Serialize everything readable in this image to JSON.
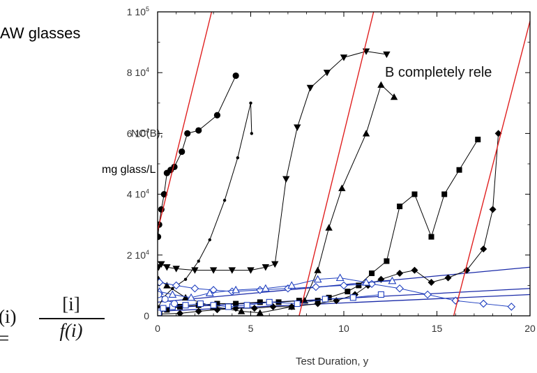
{
  "labels": {
    "heading_fragment": "AW glasses",
    "y_label_top": "NC(B),",
    "y_label_bottom": "mg glass/L",
    "x_label": "Test Duration, y",
    "annotation": "B completely rele",
    "formula": {
      "lhs": "(i) =",
      "numerator": "[i]",
      "denominator": "f(i)"
    }
  },
  "colors": {
    "reference_lines": "#e02020",
    "fit_lines": "#1a2aa8",
    "data": "#000000",
    "open_series": "#2040c0"
  },
  "chart_data": {
    "type": "scatter",
    "xlabel": "Test Duration, y",
    "ylabel": "NC(B), mg glass/L",
    "xlim": [
      0,
      20
    ],
    "ylim": [
      0,
      100000
    ],
    "x_ticks": [
      0,
      5,
      10,
      15,
      20
    ],
    "x_tick_labels": [
      "0",
      "5",
      "10",
      "15",
      "20"
    ],
    "y_ticks": [
      0,
      20000,
      40000,
      60000,
      80000,
      100000
    ],
    "y_tick_labels": [
      {
        "base": "0",
        "exp": ""
      },
      {
        "base": "2 10",
        "exp": "4"
      },
      {
        "base": "4 10",
        "exp": "4"
      },
      {
        "base": "6 10",
        "exp": "4"
      },
      {
        "base": "8 10",
        "exp": "4"
      },
      {
        "base": "1 10",
        "exp": "5"
      }
    ],
    "grid": false,
    "annotations": [
      {
        "text": "B completely rele",
        "x": 12.3,
        "y": 84000
      }
    ],
    "reference_lines": [
      {
        "x1": 0,
        "y1": 28000,
        "x2": 2.9,
        "y2": 100000
      },
      {
        "x1": 7.6,
        "y1": 0,
        "x2": 11.6,
        "y2": 100000
      },
      {
        "x1": 15.9,
        "y1": 0,
        "x2": 20,
        "y2": 97000
      }
    ],
    "fit_lines": [
      {
        "x1": 0,
        "y1": 4500,
        "x2": 20,
        "y2": 16000
      },
      {
        "x1": 0,
        "y1": 2500,
        "x2": 20,
        "y2": 9000
      },
      {
        "x1": 0,
        "y1": 1500,
        "x2": 20,
        "y2": 7000
      }
    ],
    "series": [
      {
        "marker": "circle",
        "x": [
          0.02,
          0.08,
          0.2,
          0.35,
          0.5,
          0.7,
          0.9,
          1.3,
          1.6,
          2.2,
          3.2,
          4.2
        ],
        "y": [
          26000,
          30000,
          35000,
          40000,
          47000,
          48000,
          49000,
          54000,
          60000,
          61000,
          66000,
          79000
        ]
      },
      {
        "marker": "smalldot",
        "x": [
          0.05,
          0.3,
          0.8,
          1.5,
          2.2,
          2.8,
          3.6,
          4.3,
          5.0,
          5.05
        ],
        "y": [
          3000,
          6000,
          9000,
          12000,
          18000,
          25000,
          38000,
          52000,
          70000,
          60000
        ]
      },
      {
        "marker": "triangle-down",
        "x": [
          0.05,
          0.2,
          0.5,
          1.0,
          2.0,
          3.0,
          4.0,
          5.0,
          5.8,
          6.3,
          6.9,
          7.5,
          8.2,
          9.1,
          10.0,
          11.2,
          12.3
        ],
        "y": [
          16000,
          17000,
          16000,
          15500,
          15000,
          15000,
          15000,
          15000,
          16000,
          17000,
          45000,
          62000,
          75000,
          80000,
          85000,
          87000,
          86000
        ]
      },
      {
        "marker": "triangle-up",
        "x": [
          0.05,
          0.5,
          1.5,
          3.0,
          4.5,
          5.5,
          7.2,
          7.9,
          8.6,
          9.2,
          9.9,
          11.2,
          12.0,
          12.7
        ],
        "y": [
          12000,
          10000,
          6000,
          3000,
          1500,
          1000,
          3000,
          5000,
          15000,
          29000,
          42000,
          60000,
          76000,
          72000
        ]
      },
      {
        "marker": "square",
        "x": [
          0.1,
          0.5,
          1.2,
          2.2,
          3.2,
          4.2,
          5.5,
          6.5,
          7.6,
          8.6,
          9.2,
          10.2,
          10.8,
          11.5,
          12.3,
          13.0,
          13.8,
          14.7,
          15.4,
          16.2,
          17.2
        ],
        "y": [
          1000,
          2000,
          3000,
          3500,
          4000,
          4000,
          4500,
          4500,
          5000,
          5000,
          6000,
          8000,
          10000,
          14000,
          18000,
          36000,
          40000,
          26000,
          40000,
          48000,
          58000
        ]
      },
      {
        "marker": "diamond",
        "x": [
          0.1,
          1.2,
          2.2,
          3.2,
          4.2,
          5.2,
          6.2,
          7.2,
          8.6,
          9.6,
          10.6,
          11.3,
          12.0,
          13.0,
          13.8,
          14.7,
          15.6,
          16.6,
          17.5,
          18.0,
          18.3
        ],
        "y": [
          600,
          800,
          1500,
          2000,
          2500,
          2500,
          3000,
          3000,
          4000,
          5000,
          7000,
          10000,
          12000,
          14000,
          15000,
          11000,
          12500,
          15000,
          22000,
          35000,
          60000
        ]
      },
      {
        "marker": "open-diamond",
        "x": [
          0.1,
          1.0,
          2.0,
          3.0,
          4.0,
          5.5,
          7.0,
          8.5,
          10.0,
          11.5,
          13.0,
          14.5,
          16.0,
          17.5,
          19.0
        ],
        "y": [
          11000,
          10000,
          9000,
          8500,
          8000,
          8500,
          9000,
          9500,
          10000,
          10500,
          9000,
          7000,
          5000,
          4000,
          3000
        ]
      },
      {
        "marker": "open-triangle",
        "x": [
          0.1,
          0.8,
          1.8,
          2.8,
          4.2,
          5.8,
          7.2,
          8.6,
          9.8,
          11.2,
          12.6
        ],
        "y": [
          8000,
          7000,
          6000,
          7500,
          8500,
          9000,
          10000,
          12000,
          12500,
          11000,
          11500
        ]
      },
      {
        "marker": "open-square",
        "x": [
          0.05,
          0.3,
          0.8,
          1.5,
          2.3,
          3.0,
          3.8,
          4.8,
          6.0,
          7.5,
          9.0,
          10.5,
          12.0
        ],
        "y": [
          1000,
          2500,
          3000,
          3500,
          4000,
          3500,
          3000,
          3500,
          4500,
          4000,
          5500,
          6000,
          7000
        ]
      },
      {
        "marker": "open-circle",
        "x": [
          0.05,
          0.4,
          0.9
        ],
        "y": [
          7000,
          5500,
          4000
        ]
      }
    ]
  }
}
